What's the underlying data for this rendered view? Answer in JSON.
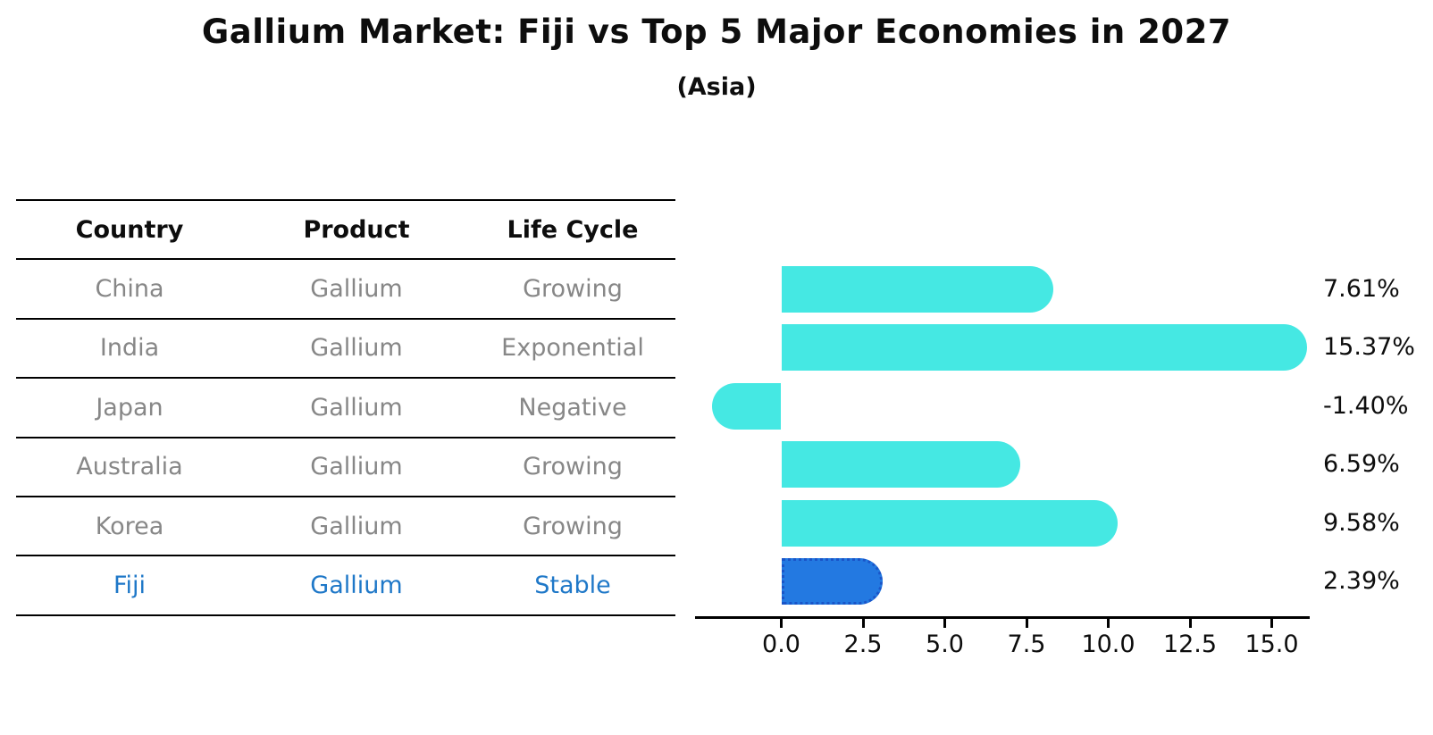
{
  "title": "Gallium Market: Fiji vs Top 5 Major Economies in 2027",
  "subtitle": "(Asia)",
  "table": {
    "headers": [
      "Country",
      "Product",
      "Life Cycle"
    ],
    "rows": [
      {
        "country": "China",
        "product": "Gallium",
        "life_cycle": "Growing",
        "highlight": false
      },
      {
        "country": "India",
        "product": "Gallium",
        "life_cycle": "Exponential",
        "highlight": false
      },
      {
        "country": "Japan",
        "product": "Gallium",
        "life_cycle": "Negative",
        "highlight": false
      },
      {
        "country": "Australia",
        "product": "Gallium",
        "life_cycle": "Growing",
        "highlight": false
      },
      {
        "country": "Korea",
        "product": "Gallium",
        "life_cycle": "Growing",
        "highlight": false
      },
      {
        "country": "Fiji",
        "product": "Gallium",
        "life_cycle": "Stable",
        "highlight": true
      }
    ]
  },
  "chart_data": {
    "type": "bar",
    "orientation": "horizontal",
    "title": "Gallium Market: Fiji vs Top 5 Major Economies in 2027",
    "subtitle": "(Asia)",
    "categories": [
      "China",
      "India",
      "Japan",
      "Australia",
      "Korea",
      "Fiji"
    ],
    "values": [
      7.61,
      15.37,
      -1.4,
      6.59,
      9.58,
      2.39
    ],
    "value_labels": [
      "7.61%",
      "15.37%",
      "-1.40%",
      "6.59%",
      "9.58%",
      "2.39%"
    ],
    "highlight_category": "Fiji",
    "highlight_index": 5,
    "x_tick_values": [
      0.0,
      2.5,
      5.0,
      7.5,
      10.0,
      12.5,
      15.0
    ],
    "x_tick_labels": [
      "0.0",
      "2.5",
      "5.0",
      "7.5",
      "10.0",
      "12.5",
      "15.0"
    ],
    "xlim": [
      -2.64,
      16.16
    ],
    "grid": false,
    "legend": false,
    "bar_color": "#45E8E3",
    "highlight_bar_color": "#2379E1",
    "highlight_bar_border": "#1A55C8"
  },
  "colors": {
    "text": "#0d0d0d",
    "table_text": "#878787",
    "highlight_text": "#1f78c8",
    "axis": "#000000"
  }
}
